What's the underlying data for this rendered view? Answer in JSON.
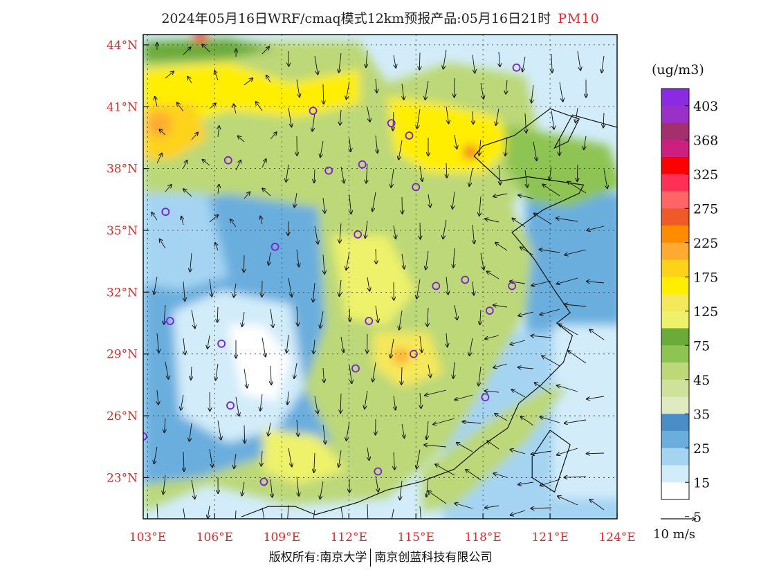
{
  "title": {
    "main": "2024年05月16日WRF/cmaq模式12km预报产品:05月16日21时",
    "variable": "PM10"
  },
  "map": {
    "lat_labels": [
      "44°N",
      "41°N",
      "38°N",
      "35°N",
      "32°N",
      "29°N",
      "26°N",
      "23°N"
    ],
    "lon_labels": [
      "103°E",
      "106°E",
      "109°E",
      "112°E",
      "115°E",
      "118°E",
      "121°E",
      "124°E"
    ],
    "lat_range": [
      21.0,
      44.5
    ],
    "lon_range": [
      102.8,
      124.0
    ],
    "prevailing_wind": "northerly over inland areas, easterly/northeasterly over the sea"
  },
  "colorbar": {
    "unit": "(ug/m3)",
    "labels": [
      "403",
      "368",
      "325",
      "275",
      "225",
      "175",
      "125",
      "75",
      "45",
      "35",
      "25",
      "15",
      "5"
    ],
    "colors": [
      "#8a2be2",
      "#9b30c8",
      "#a3306e",
      "#cc1f80",
      "#ff0000",
      "#ff3055",
      "#ff6466",
      "#ef5a28",
      "#ff8c00",
      "#ffaa30",
      "#ffd21a",
      "#ffee00",
      "#f5e85a",
      "#eef26a",
      "#6aab3a",
      "#8ec452",
      "#bcd878",
      "#cfe29a",
      "#dfeac0",
      "#4a8ec7",
      "#6aaede",
      "#a4d4f2",
      "#d2ecfa",
      "#ffffff"
    ]
  },
  "wind_reference": "10 m/s",
  "footer": {
    "left": "版权所有:南京大学",
    "right": "南京创蓝科技有限公司"
  },
  "city_markers": [
    {
      "lon": 119.5,
      "lat": 42.9
    },
    {
      "lon": 110.4,
      "lat": 40.8
    },
    {
      "lon": 113.9,
      "lat": 40.2
    },
    {
      "lon": 114.7,
      "lat": 39.6
    },
    {
      "lon": 106.6,
      "lat": 38.4
    },
    {
      "lon": 111.1,
      "lat": 37.9
    },
    {
      "lon": 112.6,
      "lat": 38.2
    },
    {
      "lon": 115.0,
      "lat": 37.1
    },
    {
      "lon": 103.8,
      "lat": 35.9
    },
    {
      "lon": 112.4,
      "lat": 34.8
    },
    {
      "lon": 108.7,
      "lat": 34.2
    },
    {
      "lon": 115.9,
      "lat": 32.3
    },
    {
      "lon": 117.2,
      "lat": 32.6
    },
    {
      "lon": 119.3,
      "lat": 32.3
    },
    {
      "lon": 118.3,
      "lat": 31.1
    },
    {
      "lon": 104.0,
      "lat": 30.6
    },
    {
      "lon": 112.9,
      "lat": 30.6
    },
    {
      "lon": 106.3,
      "lat": 29.5
    },
    {
      "lon": 114.9,
      "lat": 29.0
    },
    {
      "lon": 112.3,
      "lat": 28.3
    },
    {
      "lon": 106.7,
      "lat": 26.5
    },
    {
      "lon": 118.1,
      "lat": 26.9
    },
    {
      "lon": 102.8,
      "lat": 25.0
    },
    {
      "lon": 108.2,
      "lat": 22.8
    },
    {
      "lon": 113.3,
      "lat": 23.3
    }
  ]
}
